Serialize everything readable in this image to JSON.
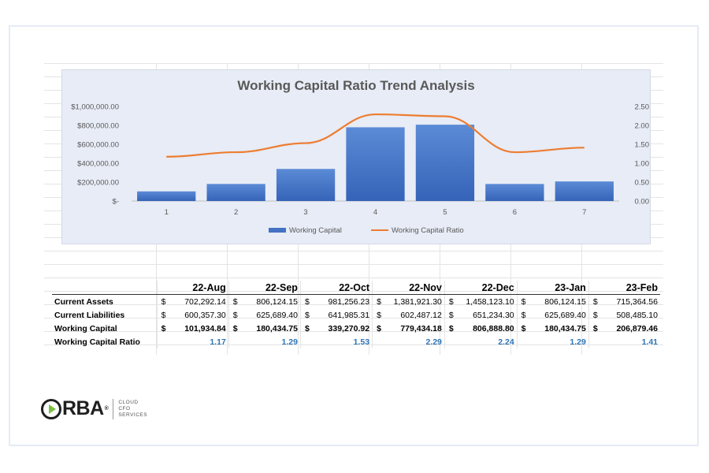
{
  "chart_data": {
    "type": "bar",
    "title": "Working Capital Ratio Trend Analysis",
    "categories": [
      "1",
      "2",
      "3",
      "4",
      "5",
      "6",
      "7"
    ],
    "series": [
      {
        "name": "Working Capital",
        "type": "bar",
        "axis": "left",
        "color": "#4472c4",
        "values": [
          101934.84,
          180434.75,
          339270.92,
          779434.18,
          806888.8,
          180434.75,
          206879.46
        ]
      },
      {
        "name": "Working Capital Ratio",
        "type": "line",
        "axis": "right",
        "color": "#ed7d31",
        "values": [
          1.17,
          1.29,
          1.53,
          2.29,
          2.24,
          1.29,
          1.41
        ]
      }
    ],
    "y_left": {
      "min": 0,
      "max": 1000000,
      "ticks": [
        {
          "v": 0,
          "label": "$-"
        },
        {
          "v": 200000,
          "label": "$200,000.00"
        },
        {
          "v": 400000,
          "label": "$400,000.00"
        },
        {
          "v": 600000,
          "label": "$600,000.00"
        },
        {
          "v": 800000,
          "label": "$800,000.00"
        },
        {
          "v": 1000000,
          "label": "$1,000,000.00"
        }
      ]
    },
    "y_right": {
      "min": 0,
      "max": 2.5,
      "ticks": [
        {
          "v": 0,
          "label": "0.00"
        },
        {
          "v": 0.5,
          "label": "0.50"
        },
        {
          "v": 1.0,
          "label": "1.00"
        },
        {
          "v": 1.5,
          "label": "1.50"
        },
        {
          "v": 2.0,
          "label": "2.00"
        },
        {
          "v": 2.5,
          "label": "2.50"
        }
      ]
    },
    "legend_position": "bottom",
    "grid": false
  },
  "table": {
    "columns": [
      "22-Aug",
      "22-Sep",
      "22-Oct",
      "22-Nov",
      "22-Dec",
      "23-Jan",
      "23-Feb"
    ],
    "currency_symbol": "$",
    "rows": [
      {
        "label": "Current Assets",
        "style": "money",
        "values": [
          "702,292.14",
          "806,124.15",
          "981,256.23",
          "1,381,921.30",
          "1,458,123.10",
          "806,124.15",
          "715,364.56"
        ]
      },
      {
        "label": "Current Liabilities",
        "style": "money",
        "values": [
          "600,357.30",
          "625,689.40",
          "641,985.31",
          "602,487.12",
          "651,234.30",
          "625,689.40",
          "508,485.10"
        ]
      },
      {
        "label": "Working Capital",
        "style": "money-bold",
        "values": [
          "101,934.84",
          "180,434.75",
          "339,270.92",
          "779,434.18",
          "806,888.80",
          "180,434.75",
          "206,879.46"
        ]
      },
      {
        "label": "Working Capital Ratio",
        "style": "ratio",
        "values": [
          "1.17",
          "1.29",
          "1.53",
          "2.29",
          "2.24",
          "1.29",
          "1.41"
        ]
      }
    ]
  },
  "logo": {
    "wordmark": "RBA",
    "registered": "®",
    "subtitle_lines": [
      "CLOUD",
      "CFO",
      "SERVICES"
    ],
    "accent_color": "#7ac142"
  }
}
